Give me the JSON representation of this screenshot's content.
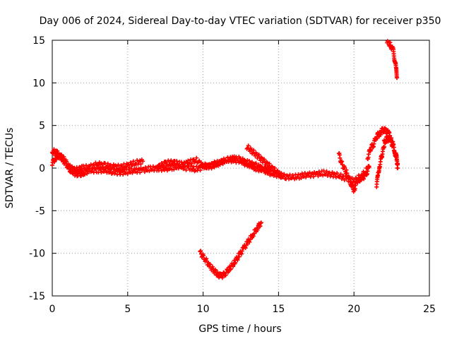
{
  "chart_data": {
    "type": "scatter",
    "title": "Day 006 of 2024, Sidereal Day-to-day VTEC variation (SDTVAR) for receiver p350",
    "xlabel": "GPS time / hours",
    "ylabel": "SDTVAR / TECUs",
    "xlim": [
      0,
      25
    ],
    "ylim": [
      -15,
      15
    ],
    "xticks": [
      0,
      5,
      10,
      15,
      20,
      25
    ],
    "yticks": [
      -15,
      -10,
      -5,
      0,
      5,
      10,
      15
    ],
    "grid": true,
    "marker": "+",
    "series": [
      {
        "name": "SDTVAR",
        "color": "#ff0000",
        "tracks": [
          {
            "x": [
              0.0,
              0.3,
              0.6,
              0.9,
              1.2,
              1.5,
              1.8,
              2.1,
              2.5,
              3.0,
              3.5,
              4.0,
              4.5,
              5.0,
              5.5,
              6.0,
              6.5,
              7.0,
              7.5,
              8.0,
              8.5,
              9.0,
              9.5,
              10.0,
              10.5,
              11.0,
              11.5,
              12.0,
              12.5,
              13.0,
              13.5,
              14.0,
              14.5,
              15.0,
              15.5,
              16.0,
              16.5,
              17.0,
              17.5,
              18.0,
              18.5,
              19.0,
              19.5,
              20.0,
              20.5,
              21.0
            ],
            "y": [
              2.0,
              1.8,
              1.2,
              0.5,
              -0.2,
              -0.6,
              -0.8,
              -0.5,
              -0.3,
              -0.2,
              -0.3,
              -0.4,
              -0.5,
              -0.4,
              -0.3,
              -0.2,
              -0.1,
              0.0,
              -0.1,
              0.1,
              0.2,
              0.0,
              -0.1,
              0.1,
              0.4,
              0.6,
              0.9,
              1.0,
              0.8,
              0.4,
              0.0,
              -0.3,
              -0.6,
              -0.8,
              -1.0,
              -1.1,
              -0.9,
              -0.8,
              -0.7,
              -0.6,
              -0.7,
              -0.9,
              -1.2,
              -1.5,
              -0.9,
              0.1
            ]
          },
          {
            "x": [
              0.0,
              0.2,
              0.5,
              0.8,
              1.1,
              1.4,
              1.7,
              2.0,
              2.5,
              3.0,
              3.5,
              4.0,
              4.5,
              5.0,
              5.5,
              6.0
            ],
            "y": [
              0.5,
              1.2,
              1.5,
              1.0,
              0.2,
              -0.2,
              -0.2,
              0.0,
              0.1,
              0.5,
              0.3,
              0.2,
              0.1,
              0.3,
              0.6,
              0.8
            ]
          },
          {
            "x": [
              7.0,
              7.5,
              8.0,
              8.5,
              9.0,
              9.5,
              10.0,
              10.5,
              11.0,
              11.5,
              12.0,
              12.5,
              13.0,
              13.5,
              14.0,
              14.5
            ],
            "y": [
              0.2,
              0.5,
              0.8,
              0.4,
              0.6,
              1.0,
              0.3,
              0.2,
              0.5,
              0.9,
              1.2,
              1.0,
              0.6,
              0.3,
              0.0,
              -0.3
            ]
          },
          {
            "x": [
              12.9,
              13.3,
              13.7,
              14.1,
              14.5,
              14.9,
              15.2
            ],
            "y": [
              2.5,
              1.9,
              1.3,
              0.7,
              0.1,
              -0.5,
              -1.0
            ]
          },
          {
            "x": [
              9.8,
              10.1,
              10.4,
              10.7,
              11.0,
              11.2,
              11.5,
              11.8,
              12.1,
              12.4,
              12.7,
              13.0,
              13.3,
              13.6,
              13.85
            ],
            "y": [
              -9.9,
              -10.6,
              -11.4,
              -12.0,
              -12.5,
              -12.7,
              -12.3,
              -11.7,
              -11.0,
              -10.2,
              -9.4,
              -8.6,
              -7.8,
              -7.0,
              -6.4
            ]
          },
          {
            "x": [
              19.0,
              19.2,
              19.5,
              19.8,
              20.0,
              20.2,
              20.5,
              20.8,
              21.0
            ],
            "y": [
              1.6,
              0.5,
              -0.5,
              -1.8,
              -2.6,
              -1.5,
              -1.2,
              -0.8,
              0.2
            ]
          },
          {
            "x": [
              20.9,
              21.1,
              21.3,
              21.5,
              21.7,
              21.9,
              22.1,
              22.3,
              22.5,
              22.7,
              22.9
            ],
            "y": [
              1.2,
              2.3,
              2.8,
              3.8,
              4.0,
              4.5,
              4.4,
              4.1,
              3.3,
              2.0,
              0.0
            ]
          },
          {
            "x": [
              21.5,
              21.6,
              21.7,
              21.85,
              22.0
            ],
            "y": [
              -2.2,
              -0.6,
              0.3,
              1.5,
              2.5
            ]
          },
          {
            "x": [
              22.0,
              22.2,
              22.4,
              22.6,
              22.8,
              22.9
            ],
            "y": [
              3.0,
              3.5,
              3.2,
              2.6,
              1.4,
              0.5
            ]
          },
          {
            "x": [
              22.2,
              22.4,
              22.6,
              22.7,
              22.8,
              22.85
            ],
            "y": [
              14.9,
              14.5,
              13.8,
              12.7,
              11.5,
              10.6
            ]
          }
        ]
      }
    ]
  }
}
